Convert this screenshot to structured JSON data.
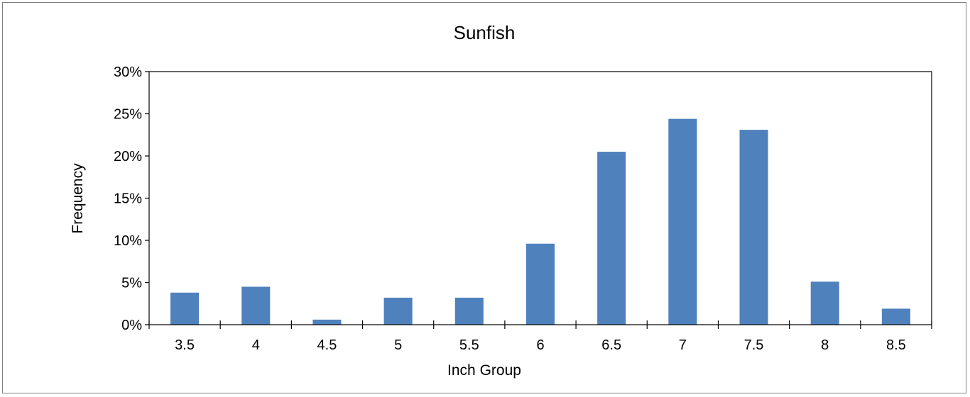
{
  "chart_data": {
    "type": "bar",
    "title": "Sunfish",
    "xlabel": "Inch Group",
    "ylabel": "Frequency",
    "categories": [
      "3.5",
      "4",
      "4.5",
      "5",
      "5.5",
      "6",
      "6.5",
      "7",
      "7.5",
      "8",
      "8.5"
    ],
    "values": [
      3.8,
      4.5,
      0.6,
      3.2,
      3.2,
      9.6,
      20.5,
      24.4,
      23.1,
      5.1,
      1.9
    ],
    "ylim": [
      0,
      30
    ],
    "yticks": [
      0,
      5,
      10,
      15,
      20,
      25,
      30
    ],
    "ytick_labels": [
      "0%",
      "5%",
      "10%",
      "15%",
      "20%",
      "25%",
      "30%"
    ],
    "bar_color": "#4f81bd",
    "grid": false,
    "legend": "none"
  }
}
